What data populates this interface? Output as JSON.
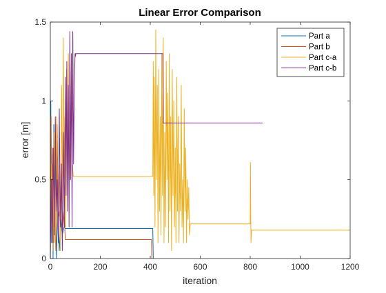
{
  "chart_data": {
    "type": "line",
    "title": "Linear Error Comparison",
    "xlabel": "iteration",
    "ylabel": "error [m]",
    "xlim": [
      0,
      1200
    ],
    "ylim": [
      0,
      1.5
    ],
    "xticks": [
      0,
      200,
      400,
      600,
      800,
      1000,
      1200
    ],
    "xtick_labels": [
      "0",
      "200",
      "400",
      "600",
      "800",
      "1000",
      "1200"
    ],
    "yticks": [
      0,
      0.5,
      1,
      1.5
    ],
    "ytick_labels": [
      "0",
      "0.5",
      "1",
      "1.5"
    ],
    "grid": false,
    "legend_position": "top-right",
    "series": [
      {
        "name": "Part a",
        "color": "#0072BD",
        "points": [
          [
            0,
            0.2
          ],
          [
            2,
            1.0
          ],
          [
            5,
            0.1
          ],
          [
            8,
            0.6
          ],
          [
            11,
            0.0
          ],
          [
            14,
            0.85
          ],
          [
            17,
            0.15
          ],
          [
            20,
            0.7
          ],
          [
            24,
            0.0
          ],
          [
            30,
            0.3
          ],
          [
            36,
            0.05
          ],
          [
            42,
            0.25
          ],
          [
            48,
            0.15
          ],
          [
            55,
            0.2
          ],
          [
            60,
            0.19
          ],
          [
            410,
            0.19
          ],
          [
            412,
            0.0
          ]
        ]
      },
      {
        "name": "Part b",
        "color": "#D95319",
        "points": [
          [
            0,
            0.1
          ],
          [
            3,
            0.9
          ],
          [
            6,
            0.2
          ],
          [
            10,
            0.7
          ],
          [
            14,
            0.1
          ],
          [
            18,
            0.5
          ],
          [
            22,
            0.05
          ],
          [
            27,
            0.85
          ],
          [
            32,
            0.25
          ],
          [
            37,
            0.3
          ],
          [
            40,
            0.15
          ],
          [
            45,
            0.6
          ],
          [
            50,
            0.2
          ],
          [
            55,
            0.3
          ],
          [
            60,
            0.12
          ],
          [
            405,
            0.12
          ],
          [
            406,
            0.0
          ]
        ]
      },
      {
        "name": "Part c-a",
        "color": "#EDB120",
        "points": [
          [
            0,
            0.1
          ],
          [
            5,
            0.6
          ],
          [
            10,
            0.05
          ],
          [
            15,
            0.8
          ],
          [
            20,
            0.1
          ],
          [
            25,
            0.9
          ],
          [
            30,
            0.2
          ],
          [
            35,
            0.6
          ],
          [
            40,
            0.05
          ],
          [
            45,
            1.1
          ],
          [
            48,
            0.3
          ],
          [
            52,
            1.4
          ],
          [
            55,
            0.5
          ],
          [
            58,
            0.9
          ],
          [
            62,
            0.2
          ],
          [
            65,
            1.2
          ],
          [
            68,
            0.4
          ],
          [
            72,
            1.3
          ],
          [
            75,
            0.3
          ],
          [
            78,
            1.0
          ],
          [
            80,
            0.5
          ],
          [
            84,
            1.3
          ],
          [
            88,
            0.6
          ],
          [
            92,
            0.52
          ],
          [
            410,
            0.52
          ],
          [
            412,
            1.25
          ],
          [
            414,
            0.4
          ],
          [
            416,
            1.15
          ],
          [
            419,
            0.2
          ],
          [
            422,
            1.45
          ],
          [
            425,
            0.5
          ],
          [
            428,
            1.1
          ],
          [
            431,
            0.1
          ],
          [
            434,
            1.2
          ],
          [
            437,
            0.3
          ],
          [
            440,
            0.9
          ],
          [
            443,
            0.15
          ],
          [
            446,
            1.3
          ],
          [
            449,
            0.4
          ],
          [
            452,
            1.4
          ],
          [
            455,
            0.1
          ],
          [
            458,
            0.8
          ],
          [
            461,
            0.2
          ],
          [
            464,
            1.25
          ],
          [
            467,
            0.5
          ],
          [
            470,
            1.05
          ],
          [
            473,
            0.1
          ],
          [
            476,
            1.3
          ],
          [
            479,
            0.3
          ],
          [
            482,
            0.9
          ],
          [
            485,
            0.05
          ],
          [
            488,
            1.2
          ],
          [
            491,
            0.4
          ],
          [
            494,
            1.0
          ],
          [
            497,
            0.2
          ],
          [
            500,
            0.7
          ],
          [
            503,
            0.1
          ],
          [
            506,
            1.15
          ],
          [
            509,
            0.3
          ],
          [
            512,
            0.9
          ],
          [
            515,
            0.1
          ],
          [
            518,
            0.6
          ],
          [
            521,
            0.3
          ],
          [
            524,
            1.1
          ],
          [
            527,
            0.2
          ],
          [
            530,
            0.5
          ],
          [
            533,
            0.1
          ],
          [
            536,
            0.95
          ],
          [
            539,
            0.3
          ],
          [
            542,
            0.7
          ],
          [
            545,
            0.1
          ],
          [
            548,
            0.5
          ],
          [
            551,
            0.25
          ],
          [
            554,
            0.45
          ],
          [
            557,
            0.15
          ],
          [
            560,
            0.22
          ],
          [
            800,
            0.22
          ],
          [
            801,
            0.61
          ],
          [
            803,
            0.1
          ],
          [
            805,
            0.18
          ],
          [
            1200,
            0.18
          ]
        ]
      },
      {
        "name": "Part c-b",
        "color": "#7E2F8E",
        "points": [
          [
            0,
            0.0
          ],
          [
            4,
            0.5
          ],
          [
            8,
            0.1
          ],
          [
            12,
            0.7
          ],
          [
            16,
            0.2
          ],
          [
            20,
            0.9
          ],
          [
            24,
            0.3
          ],
          [
            28,
            0.5
          ],
          [
            32,
            0.1
          ],
          [
            36,
            0.95
          ],
          [
            40,
            0.2
          ],
          [
            44,
            0.6
          ],
          [
            48,
            0.05
          ],
          [
            52,
            0.8
          ],
          [
            56,
            0.2
          ],
          [
            60,
            1.15
          ],
          [
            63,
            0.4
          ],
          [
            66,
            1.25
          ],
          [
            69,
            0.3
          ],
          [
            72,
            1.1
          ],
          [
            75,
            0.2
          ],
          [
            78,
            1.44
          ],
          [
            81,
            0.5
          ],
          [
            84,
            1.3
          ],
          [
            87,
            0.2
          ],
          [
            90,
            1.44
          ],
          [
            93,
            0.6
          ],
          [
            96,
            1.1
          ],
          [
            99,
            1.3
          ],
          [
            100,
            1.28
          ],
          [
            102,
            1.3
          ],
          [
            450,
            1.3
          ],
          [
            452,
            0.86
          ],
          [
            850,
            0.86
          ]
        ]
      }
    ]
  }
}
